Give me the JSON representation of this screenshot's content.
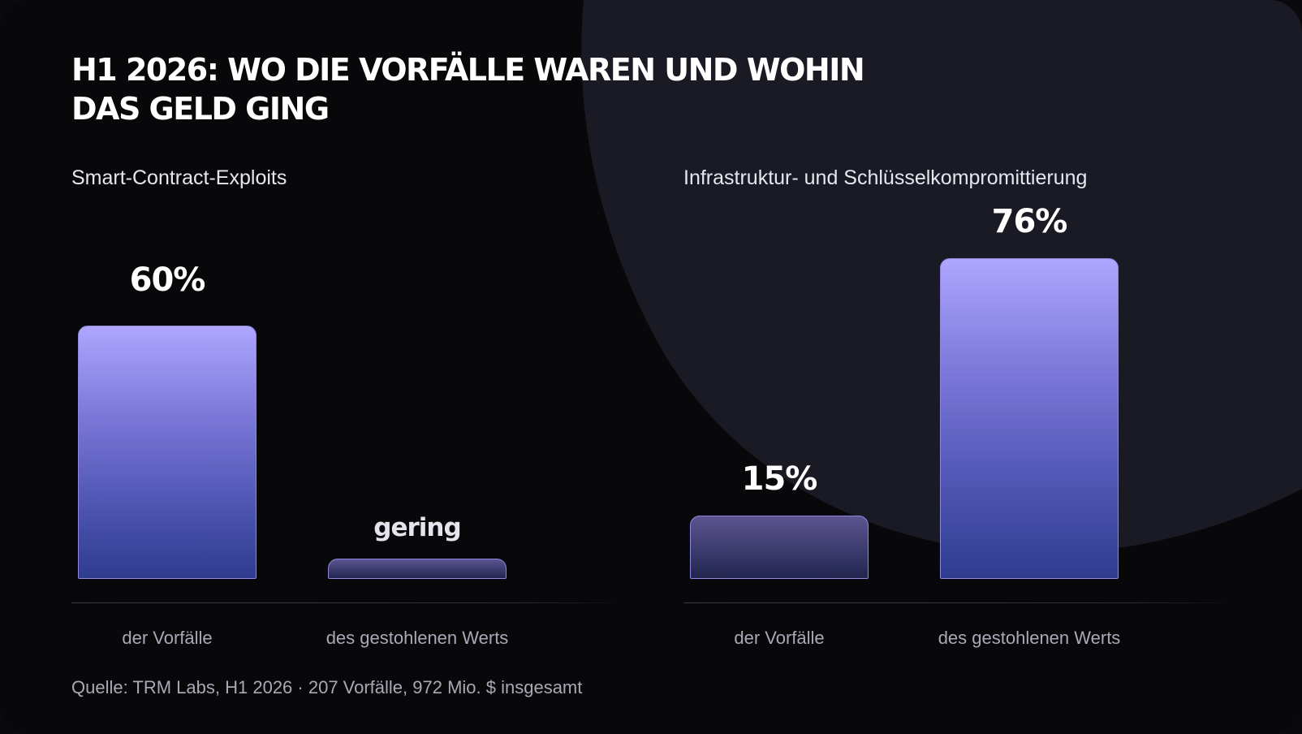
{
  "title": "H1 2026: WO DIE VORFÄLLE WAREN UND WOHIN\nDAS GELD GING",
  "source": "Quelle: TRM Labs, H1 2026 · 207 Vorfälle, 972 Mio. $ insgesamt",
  "colors": {
    "background": "#08080b",
    "blob": "#1a1a25",
    "bar_top": "#aea6ff",
    "bar_bottom": "#2e3c8f",
    "bar_border": "#8f86e0"
  },
  "chart_data": [
    {
      "type": "bar",
      "title": "Smart-Contract-Exploits",
      "categories": [
        "der Vorfälle",
        "des gestohlenen Werts"
      ],
      "values": [
        60,
        null
      ],
      "data_labels": [
        "60%",
        "gering"
      ],
      "ylim": [
        0,
        100
      ]
    },
    {
      "type": "bar",
      "title": "Infrastruktur- und Schlüsselkompromittierung",
      "categories": [
        "der Vorfälle",
        "des gestohlenen Werts"
      ],
      "values": [
        15,
        76
      ],
      "data_labels": [
        "15%",
        "76%"
      ],
      "ylim": [
        0,
        100
      ]
    }
  ]
}
